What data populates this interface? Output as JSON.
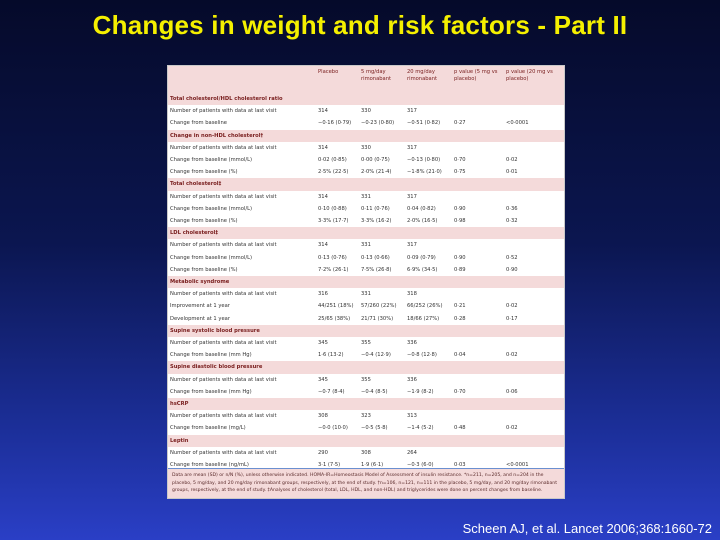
{
  "slide": {
    "title": "Changes in weight and risk factors - Part II",
    "citation": "Scheen AJ, et al. Lancet 2006;368:1660-72"
  },
  "table": {
    "headers": [
      "",
      "Placebo",
      "5 mg/day rimonabant",
      "20 mg/day rimonabant",
      "p value (5 mg vs placebo)",
      "p value (20 mg vs placebo)"
    ],
    "rows": [
      {
        "type": "section",
        "cells": [
          "Total cholesterol/HDL cholesterol ratio",
          "",
          "",
          "",
          "",
          ""
        ]
      },
      {
        "type": "data",
        "cells": [
          "Number of patients with data at last visit",
          "314",
          "330",
          "317",
          "",
          ""
        ]
      },
      {
        "type": "data",
        "cells": [
          "Change from baseline",
          "−0·16 (0·79)",
          "−0·23 (0·80)",
          "−0·51 (0·82)",
          "0·27",
          "<0·0001"
        ]
      },
      {
        "type": "section",
        "cells": [
          "Change in non-HDL cholesterol†",
          "",
          "",
          "",
          "",
          ""
        ]
      },
      {
        "type": "data",
        "cells": [
          "Number of patients with data at last visit",
          "314",
          "330",
          "317",
          "",
          ""
        ]
      },
      {
        "type": "data",
        "cells": [
          "Change from baseline (mmol/L)",
          "0·02 (0·85)",
          "0·00 (0·75)",
          "−0·13 (0·80)",
          "0·70",
          "0·02"
        ]
      },
      {
        "type": "data",
        "cells": [
          "Change from baseline (%)",
          "2·5% (22·5)",
          "2·0% (21·4)",
          "−1·8% (21·0)",
          "0·75",
          "0·01"
        ]
      },
      {
        "type": "section",
        "cells": [
          "Total cholesterol‡",
          "",
          "",
          "",
          "",
          ""
        ]
      },
      {
        "type": "data",
        "cells": [
          "Number of patients with data at last visit",
          "314",
          "331",
          "317",
          "",
          ""
        ]
      },
      {
        "type": "data",
        "cells": [
          "Change from baseline (mmol/L)",
          "0·10 (0·88)",
          "0·11 (0·76)",
          "0·04 (0·82)",
          "0·90",
          "0·36"
        ]
      },
      {
        "type": "data",
        "cells": [
          "Change from baseline (%)",
          "3·3% (17·7)",
          "3·3% (16·2)",
          "2·0% (16·5)",
          "0·98",
          "0·32"
        ]
      },
      {
        "type": "section",
        "cells": [
          "LDL cholesterol‡",
          "",
          "",
          "",
          "",
          ""
        ]
      },
      {
        "type": "data",
        "cells": [
          "Number of patients with data at last visit",
          "314",
          "331",
          "317",
          "",
          ""
        ]
      },
      {
        "type": "data",
        "cells": [
          "Change from baseline (mmol/L)",
          "0·13 (0·76)",
          "0·13 (0·66)",
          "0·09 (0·79)",
          "0·90",
          "0·52"
        ]
      },
      {
        "type": "data",
        "cells": [
          "Change from baseline (%)",
          "7·2% (26·1)",
          "7·5% (26·8)",
          "6·9% (34·5)",
          "0·89",
          "0·90"
        ]
      },
      {
        "type": "section",
        "cells": [
          "Metabolic syndrome",
          "",
          "",
          "",
          "",
          ""
        ]
      },
      {
        "type": "data",
        "cells": [
          "Number of patients with data at last visit",
          "316",
          "331",
          "318",
          "",
          ""
        ]
      },
      {
        "type": "data",
        "cells": [
          "Improvement at 1 year",
          "44/251 (18%)",
          "57/260 (22%)",
          "66/252 (26%)",
          "0·21",
          "0·02"
        ]
      },
      {
        "type": "data",
        "cells": [
          "Development at 1 year",
          "25/65 (38%)",
          "21/71 (30%)",
          "18/66 (27%)",
          "0·28",
          "0·17"
        ]
      },
      {
        "type": "section",
        "cells": [
          "Supine systolic blood pressure",
          "",
          "",
          "",
          "",
          ""
        ]
      },
      {
        "type": "data",
        "cells": [
          "Number of patients with data at last visit",
          "345",
          "355",
          "336",
          "",
          ""
        ]
      },
      {
        "type": "data",
        "cells": [
          "Change from baseline (mm Hg)",
          "1·6 (13·2)",
          "−0·4 (12·9)",
          "−0·8 (12·8)",
          "0·04",
          "0·02"
        ]
      },
      {
        "type": "section",
        "cells": [
          "Supine diastolic blood pressure",
          "",
          "",
          "",
          "",
          ""
        ]
      },
      {
        "type": "data",
        "cells": [
          "Number of patients with data at last visit",
          "345",
          "355",
          "336",
          "",
          ""
        ]
      },
      {
        "type": "data",
        "cells": [
          "Change from baseline (mm Hg)",
          "−0·7 (8·4)",
          "−0·4 (8·5)",
          "−1·9 (8·2)",
          "0·70",
          "0·06"
        ]
      },
      {
        "type": "section",
        "cells": [
          "hsCRP",
          "",
          "",
          "",
          "",
          ""
        ]
      },
      {
        "type": "data",
        "cells": [
          "Number of patients with data at last visit",
          "308",
          "323",
          "313",
          "",
          ""
        ]
      },
      {
        "type": "data",
        "cells": [
          "Change from baseline (mg/L)",
          "−0·0 (10·0)",
          "−0·5 (5·8)",
          "−1·4 (5·2)",
          "0·48",
          "0·02"
        ]
      },
      {
        "type": "section",
        "cells": [
          "Leptin",
          "",
          "",
          "",
          "",
          ""
        ]
      },
      {
        "type": "data",
        "cells": [
          "Number of patients with data at last visit",
          "290",
          "308",
          "264",
          "",
          ""
        ]
      },
      {
        "type": "data",
        "cells": [
          "Change from baseline (ng/mL)",
          "3·1 (7·5)",
          "1·9 (6·1)",
          "−0·3 (6·0)",
          "0·03",
          "<0·0001"
        ]
      }
    ],
    "footnote": "Data are mean (SD) or n/N (%), unless otherwise indicated. HOMA-IR=Homeostasis Model of Assessment of insulin resistance. *n=211, n=205, and n=204 in the placebo, 5 mg/day, and 20 mg/day rimonabant groups, respectively, at the end of study. †n=106, n=121, n=111 in the placebo, 5 mg/day, and 20 mg/day rimonabant groups, respectively, at the end of study. ‡Analyses of cholesterol (total, LDL, HDL, and non-HDL) and triglycerides were done on percent changes from baseline."
  }
}
